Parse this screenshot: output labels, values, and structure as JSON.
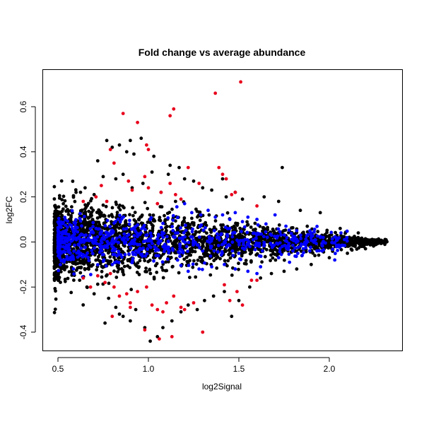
{
  "chart_data": {
    "type": "scatter",
    "title": "Fold change vs average abundance",
    "xlabel": "log2Signal",
    "ylabel": "log2FC",
    "xlim": [
      0.45,
      2.35
    ],
    "ylim": [
      -0.47,
      0.74
    ],
    "x_ticks": [
      "0.5",
      "1.0",
      "1.5",
      "2.0"
    ],
    "x_tick_values": [
      0.5,
      1.0,
      1.5,
      2.0
    ],
    "y_ticks": [
      "-0.4",
      "-0.2",
      "0.0",
      "0.2",
      "0.4",
      "0.6"
    ],
    "y_tick_values": [
      -0.4,
      -0.2,
      0.0,
      0.2,
      0.4,
      0.6
    ],
    "grid": false,
    "legend": "none",
    "colors": {
      "black": "#000000",
      "blue": "#0000ff",
      "red": "#e8001c"
    },
    "series": [
      {
        "color": "black",
        "points": [
          [
            0.72,
            0.36
          ],
          [
            0.77,
            0.45
          ],
          [
            0.8,
            0.42
          ],
          [
            0.84,
            0.43
          ],
          [
            0.88,
            0.4
          ],
          [
            0.9,
            0.45
          ],
          [
            0.92,
            0.39
          ],
          [
            0.96,
            0.46
          ],
          [
            1.03,
            0.38
          ],
          [
            1.12,
            0.34
          ],
          [
            1.11,
            0.3
          ],
          [
            1.17,
            0.33
          ],
          [
            1.02,
            0.31
          ],
          [
            1.2,
            0.28
          ],
          [
            1.25,
            0.27
          ],
          [
            1.3,
            0.24
          ],
          [
            1.35,
            0.23
          ],
          [
            1.41,
            0.28
          ],
          [
            1.43,
            0.2
          ],
          [
            1.48,
            0.22
          ],
          [
            1.52,
            0.19
          ],
          [
            1.64,
            0.2
          ],
          [
            1.74,
            0.33
          ],
          [
            1.72,
            0.18
          ],
          [
            1.84,
            0.14
          ],
          [
            1.95,
            0.13
          ],
          [
            2.06,
            0.06
          ],
          [
            2.16,
            0.04
          ],
          [
            2.24,
            0.01
          ],
          [
            2.3,
            0.0
          ],
          [
            2.26,
            -0.01
          ],
          [
            0.6,
            0.22
          ],
          [
            0.65,
            0.24
          ],
          [
            0.7,
            0.21
          ],
          [
            0.75,
            0.29
          ],
          [
            0.82,
            0.28
          ],
          [
            0.86,
            0.3
          ],
          [
            0.91,
            0.24
          ],
          [
            0.97,
            0.26
          ],
          [
            1.07,
            0.22
          ],
          [
            1.15,
            0.18
          ],
          [
            0.62,
            -0.17
          ],
          [
            0.66,
            -0.2
          ],
          [
            0.7,
            -0.23
          ],
          [
            0.78,
            -0.25
          ],
          [
            0.82,
            -0.29
          ],
          [
            0.86,
            -0.33
          ],
          [
            0.9,
            -0.35
          ],
          [
            0.93,
            -0.3
          ],
          [
            0.98,
            -0.38
          ],
          [
            1.01,
            -0.44
          ],
          [
            1.05,
            -0.42
          ],
          [
            1.08,
            -0.38
          ],
          [
            1.13,
            -0.35
          ],
          [
            1.18,
            -0.31
          ],
          [
            1.22,
            -0.28
          ],
          [
            1.27,
            -0.3
          ],
          [
            1.31,
            -0.26
          ],
          [
            1.36,
            -0.24
          ],
          [
            1.42,
            -0.22
          ],
          [
            1.46,
            -0.33
          ],
          [
            1.5,
            -0.26
          ],
          [
            1.56,
            -0.2
          ],
          [
            1.62,
            -0.16
          ],
          [
            1.68,
            -0.14
          ],
          [
            1.75,
            -0.13
          ],
          [
            1.82,
            -0.12
          ],
          [
            1.9,
            -0.1
          ],
          [
            2.0,
            -0.07
          ],
          [
            2.1,
            -0.05
          ],
          [
            2.2,
            -0.03
          ],
          [
            0.76,
            -0.36
          ],
          [
            0.84,
            -0.32
          ]
        ],
        "cloud": {
          "count": 2600,
          "x_range": [
            0.48,
            2.32
          ],
          "y_spread_at_low_x": 0.2,
          "y_spread_at_high_x": 0.01
        }
      },
      {
        "color": "blue",
        "points": [
          [
            1.2,
            0.17
          ],
          [
            1.24,
            0.13
          ],
          [
            1.29,
            0.12
          ],
          [
            1.33,
            0.14
          ],
          [
            1.37,
            0.11
          ],
          [
            1.41,
            0.12
          ],
          [
            1.45,
            0.1
          ],
          [
            1.48,
            0.13
          ],
          [
            1.52,
            0.09
          ],
          [
            1.55,
            0.11
          ],
          [
            1.6,
            0.1
          ],
          [
            1.65,
            0.08
          ],
          [
            1.7,
            0.12
          ],
          [
            1.76,
            0.07
          ],
          [
            1.82,
            0.05
          ],
          [
            1.9,
            0.04
          ],
          [
            1.96,
            -0.04
          ],
          [
            2.03,
            -0.08
          ],
          [
            1.85,
            -0.06
          ],
          [
            1.78,
            -0.09
          ],
          [
            1.72,
            -0.07
          ],
          [
            1.62,
            -0.11
          ],
          [
            1.55,
            -0.13
          ],
          [
            1.48,
            -0.12
          ],
          [
            1.42,
            -0.1
          ],
          [
            1.35,
            -0.11
          ],
          [
            1.28,
            -0.12
          ],
          [
            1.22,
            -0.13
          ],
          [
            1.6,
            -0.14
          ],
          [
            1.45,
            0.06
          ],
          [
            1.5,
            -0.05
          ],
          [
            1.38,
            0.02
          ],
          [
            1.3,
            -0.04
          ],
          [
            1.68,
            0.03
          ],
          [
            1.74,
            -0.02
          ]
        ],
        "cloud": {
          "count": 700,
          "x_range": [
            0.5,
            2.1
          ],
          "y_spread_at_low_x": 0.13,
          "y_spread_at_high_x": 0.05
        }
      },
      {
        "color": "red",
        "points": [
          [
            1.51,
            0.71
          ],
          [
            1.37,
            0.66
          ],
          [
            1.14,
            0.59
          ],
          [
            1.12,
            0.56
          ],
          [
            0.86,
            0.57
          ],
          [
            0.94,
            0.53
          ],
          [
            0.99,
            0.43
          ],
          [
            1.0,
            0.41
          ],
          [
            0.79,
            0.41
          ],
          [
            0.81,
            0.35
          ],
          [
            1.39,
            0.33
          ],
          [
            1.41,
            0.3
          ],
          [
            1.22,
            0.33
          ],
          [
            1.43,
            0.28
          ],
          [
            1.28,
            0.26
          ],
          [
            0.98,
            0.29
          ],
          [
            0.74,
            0.25
          ],
          [
            1.12,
            0.26
          ],
          [
            1.48,
            0.22
          ],
          [
            1.15,
            0.21
          ],
          [
            1.18,
            0.19
          ],
          [
            0.91,
            0.23
          ],
          [
            1.0,
            0.24
          ],
          [
            0.71,
            0.2
          ],
          [
            0.77,
            0.18
          ],
          [
            1.05,
            0.17
          ],
          [
            1.46,
            0.21
          ],
          [
            1.6,
            0.16
          ],
          [
            1.07,
            0.22
          ],
          [
            0.64,
            0.18
          ],
          [
            0.89,
            0.27
          ],
          [
            0.64,
            -0.16
          ],
          [
            0.68,
            -0.2
          ],
          [
            0.72,
            -0.15
          ],
          [
            0.76,
            -0.18
          ],
          [
            0.79,
            -0.14
          ],
          [
            0.81,
            -0.2
          ],
          [
            0.84,
            -0.24
          ],
          [
            0.88,
            -0.23
          ],
          [
            0.9,
            -0.27
          ],
          [
            0.94,
            -0.22
          ],
          [
            0.99,
            -0.2
          ],
          [
            1.02,
            -0.28
          ],
          [
            1.05,
            -0.3
          ],
          [
            1.08,
            -0.31
          ],
          [
            1.1,
            -0.27
          ],
          [
            1.14,
            -0.24
          ],
          [
            1.18,
            -0.29
          ],
          [
            1.2,
            -0.3
          ],
          [
            1.25,
            -0.27
          ],
          [
            1.3,
            -0.4
          ],
          [
            1.06,
            -0.43
          ],
          [
            0.98,
            -0.39
          ],
          [
            1.13,
            -0.42
          ],
          [
            1.49,
            -0.22
          ],
          [
            1.52,
            -0.28
          ],
          [
            1.57,
            -0.17
          ],
          [
            1.6,
            -0.17
          ],
          [
            1.42,
            -0.19
          ],
          [
            0.8,
            -0.33
          ],
          [
            0.9,
            -0.29
          ],
          [
            1.45,
            -0.26
          ]
        ]
      }
    ]
  }
}
